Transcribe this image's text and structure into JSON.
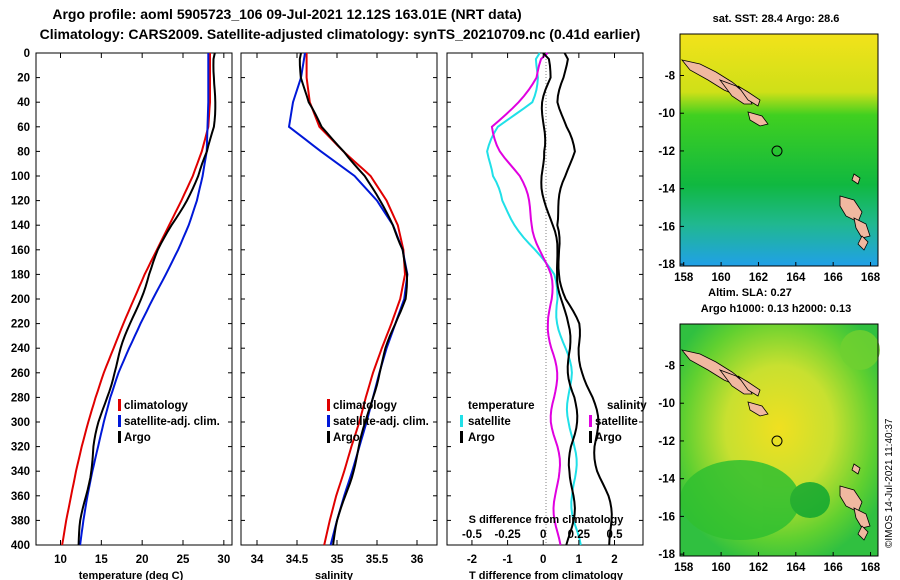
{
  "titles": {
    "line1": "Argo profile: aoml 5905723_106 09-Jul-2021 12.12S 163.01E (NRT data)",
    "line2": "Climatology: CARS2009. Satellite-adjusted climatology: synTS_20210709.nc (0.41d earlier)"
  },
  "colors": {
    "climatology": "#e00000",
    "satellite": "#0018d8",
    "argo": "#000000",
    "salinity_diff": "#e000e0",
    "temp_diff": "#20e0e8",
    "ocean_hi": "#f0e020",
    "land": "#f0b8a0"
  },
  "y_axis": {
    "range": [
      0,
      400
    ],
    "ticks": [
      "0",
      "20",
      "40",
      "60",
      "80",
      "100",
      "120",
      "140",
      "160",
      "180",
      "200",
      "220",
      "240",
      "260",
      "280",
      "300",
      "320",
      "340",
      "360",
      "380",
      "400"
    ]
  },
  "chart_data": [
    {
      "type": "line",
      "name": "temperature",
      "xlabel": "temperature (deg C)",
      "xlim": [
        7,
        31
      ],
      "ylim": [
        400,
        0
      ],
      "xticks": [
        "10",
        "15",
        "20",
        "25",
        "30"
      ],
      "depth": [
        0,
        20,
        40,
        60,
        80,
        100,
        120,
        140,
        160,
        180,
        200,
        220,
        240,
        260,
        280,
        300,
        320,
        340,
        360,
        380,
        400
      ],
      "series": [
        {
          "name": "climatology",
          "values": [
            28.3,
            28.3,
            28.3,
            28.1,
            27.3,
            26.2,
            24.8,
            23.3,
            21.8,
            20.3,
            19.0,
            17.7,
            16.5,
            15.3,
            14.3,
            13.4,
            12.6,
            11.9,
            11.3,
            10.7,
            10.2
          ]
        },
        {
          "name": "satellite-adj. clim.",
          "values": [
            28.1,
            28.1,
            28.1,
            28.0,
            27.9,
            27.4,
            26.7,
            25.7,
            24.4,
            22.9,
            21.3,
            19.8,
            18.4,
            17.1,
            16.1,
            15.3,
            14.6,
            13.9,
            13.3,
            12.8,
            12.4
          ]
        },
        {
          "name": "Argo",
          "values": [
            28.9,
            28.9,
            28.8,
            28.7,
            28.1,
            26.9,
            25.3,
            23.6,
            22.1,
            20.8,
            19.7,
            18.6,
            17.5,
            16.5,
            15.6,
            14.8,
            14.1,
            13.6,
            13.1,
            12.6,
            12.2
          ]
        }
      ],
      "legend": [
        "climatology",
        "satellite-adj. clim.",
        "Argo"
      ]
    },
    {
      "type": "line",
      "name": "salinity",
      "xlabel": "salinity",
      "xlim": [
        33.8,
        36.25
      ],
      "ylim": [
        400,
        0
      ],
      "xticks": [
        "34",
        "34.5",
        "35",
        "35.5",
        "36"
      ],
      "depth": [
        0,
        20,
        40,
        60,
        80,
        100,
        120,
        140,
        160,
        180,
        200,
        220,
        240,
        260,
        280,
        300,
        320,
        340,
        360,
        380,
        400
      ],
      "series": [
        {
          "name": "climatology",
          "values": [
            34.62,
            34.62,
            34.66,
            34.78,
            35.08,
            35.42,
            35.62,
            35.76,
            35.83,
            35.85,
            35.79,
            35.68,
            35.56,
            35.45,
            35.36,
            35.28,
            35.18,
            35.09,
            34.99,
            34.91,
            34.84
          ]
        },
        {
          "name": "satellite-adj. clim.",
          "values": [
            34.6,
            34.55,
            34.45,
            34.4,
            34.8,
            35.22,
            35.5,
            35.7,
            35.82,
            35.88,
            35.84,
            35.73,
            35.62,
            35.53,
            35.45,
            35.37,
            35.28,
            35.19,
            35.09,
            35.0,
            34.92
          ]
        },
        {
          "name": "Argo",
          "values": [
            34.55,
            34.56,
            34.63,
            34.8,
            35.1,
            35.35,
            35.52,
            35.7,
            35.84,
            35.87,
            35.84,
            35.74,
            35.62,
            35.52,
            35.44,
            35.37,
            35.28,
            35.19,
            35.1,
            35.02,
            34.95
          ]
        }
      ],
      "legend": [
        "climatology",
        "satellite-adj. clim.",
        "Argo"
      ]
    },
    {
      "type": "line",
      "name": "difference",
      "xlabel": "T difference from climatology",
      "xlim": [
        -2.7,
        2.8
      ],
      "ylim": [
        400,
        0
      ],
      "xticks": [
        "-2",
        "-1",
        "0",
        "1",
        "2"
      ],
      "x2label": "S difference from climatology",
      "x2lim": [
        -0.675,
        0.7
      ],
      "x2ticks": [
        "-0.5",
        "-0.25",
        "0",
        "0.25",
        "0.5"
      ],
      "depth": [
        0,
        20,
        40,
        60,
        80,
        100,
        120,
        140,
        160,
        180,
        200,
        220,
        240,
        260,
        280,
        300,
        320,
        340,
        360,
        380,
        400
      ],
      "series": [
        {
          "name": "temperature satellite",
          "values": [
            -0.1,
            -0.2,
            -0.4,
            -1.2,
            -1.5,
            -1.5,
            -1.2,
            -0.7,
            -0.2,
            0.2,
            0.4,
            0.5,
            0.6,
            0.7,
            0.75,
            0.8,
            0.8,
            0.85,
            0.9,
            0.9,
            0.95
          ]
        },
        {
          "name": "temperature Argo",
          "values": [
            0.6,
            0.6,
            0.5,
            0.6,
            0.8,
            0.7,
            0.5,
            0.3,
            0.4,
            0.55,
            0.65,
            0.9,
            1.0,
            1.2,
            1.35,
            1.45,
            1.5,
            1.6,
            1.75,
            1.85,
            1.95
          ]
        },
        {
          "name": "salinity satellite",
          "values": [
            0.03,
            -0.05,
            -0.2,
            -0.35,
            -0.28,
            -0.18,
            -0.12,
            -0.06,
            -0.01,
            0.03,
            0.05,
            0.06,
            0.06,
            0.07,
            0.08,
            0.08,
            0.09,
            0.09,
            0.1,
            0.1,
            0.1
          ]
        },
        {
          "name": "salinity Argo",
          "values": [
            0.0,
            0.05,
            0.02,
            0.0,
            -0.02,
            0.0,
            0.03,
            0.05,
            0.08,
            0.12,
            0.14,
            0.15,
            0.18,
            0.2,
            0.22,
            0.21,
            0.2,
            0.21,
            0.2,
            0.19,
            0.18
          ]
        }
      ],
      "legend_left": {
        "title": "temperature",
        "items": [
          "satellite",
          "Argo"
        ]
      },
      "legend_right": {
        "title": "salinity",
        "items": [
          "satellite",
          "Argo"
        ]
      }
    }
  ],
  "maps": [
    {
      "title": "sat. SST: 28.4 Argo: 28.6",
      "yticks": [
        "-8",
        "-10",
        "-12",
        "-14",
        "-16",
        "-18"
      ],
      "xticks": [
        "158",
        "160",
        "162",
        "164",
        "166",
        "168"
      ],
      "lon": [
        157.8,
        168.4
      ],
      "lat": [
        -5.8,
        -18.1
      ],
      "marker": [
        163.01,
        -12.12
      ]
    },
    {
      "title": "Argo h1000: 0.13 h2000: 0.13",
      "title_top": "Altim. SLA: 0.27",
      "yticks": [
        "-8",
        "-10",
        "-12",
        "-14",
        "-16",
        "-18"
      ],
      "xticks": [
        "158",
        "160",
        "162",
        "164",
        "166",
        "168"
      ],
      "lon": [
        157.8,
        168.4
      ],
      "lat": [
        -5.8,
        -18.1
      ],
      "marker": [
        163.01,
        -12.12
      ]
    }
  ],
  "stamp": "©IMOS 14-Jul-2021 11:40:37"
}
